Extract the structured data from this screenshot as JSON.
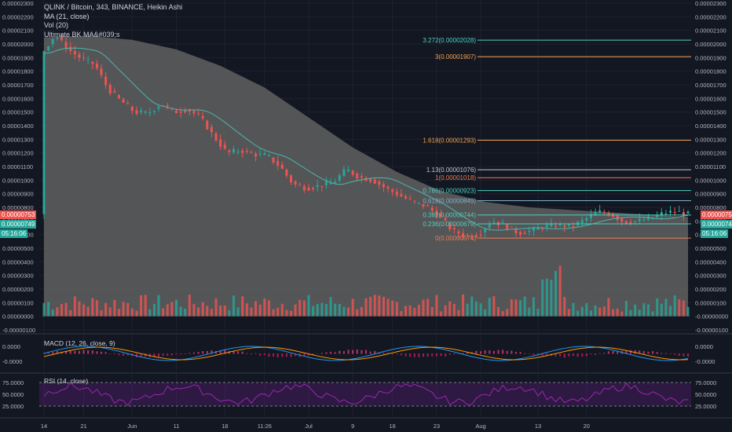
{
  "header": {
    "title": "QLINK / Bitcoin, 343, BINANCE, Heikin Ashi",
    "ma": "MA (21, close)",
    "vol": "Vol (20)",
    "ultimate": "Ultimate BK MA&#039;s"
  },
  "price_badges": {
    "last": "0.00000753",
    "ma": "0.00000749",
    "countdown": "05:16:06"
  },
  "x_tick_labels": [
    "14",
    "21",
    "Jun",
    "11",
    "18",
    "11:26",
    "Jul",
    "9",
    "16",
    "23",
    "Aug",
    "13",
    "20"
  ],
  "main_y_labels": [
    "0.00002300",
    "0.00002200",
    "0.00002100",
    "0.00002000",
    "0.00001900",
    "0.00001800",
    "0.00001700",
    "0.00001600",
    "0.00001500",
    "0.00001400",
    "0.00001300",
    "0.00001200",
    "0.00001100",
    "0.00001000",
    "0.00000900",
    "0.00000800",
    "0.00000700",
    "0.00000600",
    "0.00000500",
    "0.00000400",
    "0.00000300",
    "0.00000200",
    "0.00000100",
    "0.00000000",
    "-0.00000100"
  ],
  "right_y_labels": [
    "0.00002300",
    "0.00002200",
    "0.00002100",
    "0.00002000",
    "0.00001900",
    "0.00001800",
    "0.00001700",
    "0.00001600",
    "0.00001500",
    "0.00001400",
    "0.00001300",
    "0.00001200",
    "0.00001100",
    "0.00001000",
    "0.00000900",
    "0.00000800",
    "0.00000700",
    "0.00000600",
    "0.00000500",
    "0.00000400",
    "0.00000300",
    "0.00000200",
    "0.00000100",
    "-0.00000000",
    "-0.00000100"
  ],
  "macd": {
    "label": "MACD (12, 26, close, 9)",
    "y_labels": [
      "0.0000",
      "-0.0000"
    ]
  },
  "rsi": {
    "label": "RSI (14, close)",
    "y_labels": [
      "75.0000",
      "50.0000",
      "25.0000"
    ],
    "right_y_labels": [
      "75.0000",
      "50.0000",
      "25.0000"
    ]
  },
  "fib_levels": [
    {
      "ratio": 3.272,
      "label": "3.272(0.00002028)",
      "color": "#4dd0c0"
    },
    {
      "ratio": 3,
      "label": "3(0.00001907)",
      "color": "#f0a050"
    },
    {
      "ratio": 1.618,
      "label": "1.618(0.00001293)",
      "color": "#f0a050"
    },
    {
      "ratio": 1.13,
      "label": "1.13(0.00001076)",
      "color": "#c8c8c8"
    },
    {
      "ratio": 1,
      "label": "1(0.00001018)",
      "color": "#f07a50"
    },
    {
      "ratio": 0.786,
      "label": "0.786(0.00000923)",
      "color": "#4dd0c0"
    },
    {
      "ratio": 0.618,
      "label": "0.618(0.00000849)",
      "color": "#7fb0c8"
    },
    {
      "ratio": 0.382,
      "label": "0.382(0.00000744)",
      "color": "#4dd0c0"
    },
    {
      "ratio": 0.236,
      "label": "0.236(0.00000679)",
      "color": "#4dd0c0"
    },
    {
      "ratio": 0,
      "label": "0(0.00000574)",
      "color": "#f07a50"
    }
  ],
  "colors": {
    "up": "#26a69a",
    "down": "#ef5350",
    "band": "#606060",
    "macd": "#2196f3",
    "signal": "#ff9800",
    "rsi": "#7b1fa2",
    "bg": "#131722"
  },
  "chart_data": {
    "type": "candlestick",
    "symbol": "QLINK / Bitcoin",
    "y_range": [
      -1e-06,
      2.3e-05
    ],
    "close_series_points": [
      [
        0,
        1.93e-05
      ],
      [
        3,
        2.07e-05
      ],
      [
        6,
        1.96e-05
      ],
      [
        9,
        1.89e-05
      ],
      [
        12,
        1.85e-05
      ],
      [
        15,
        1.67e-05
      ],
      [
        18,
        1.58e-05
      ],
      [
        21,
        1.5e-05
      ],
      [
        24,
        1.49e-05
      ],
      [
        27,
        1.56e-05
      ],
      [
        30,
        1.5e-05
      ],
      [
        33,
        1.52e-05
      ],
      [
        36,
        1.46e-05
      ],
      [
        39,
        1.32e-05
      ],
      [
        42,
        1.2e-05
      ],
      [
        45,
        1.22e-05
      ],
      [
        48,
        1.19e-05
      ],
      [
        51,
        1.18e-05
      ],
      [
        54,
        1.1e-05
      ],
      [
        57,
        9.7e-06
      ],
      [
        60,
        9.4e-06
      ],
      [
        63,
        9.6e-06
      ],
      [
        66,
        9.8e-06
      ],
      [
        69,
        1.08e-05
      ],
      [
        72,
        1.02e-05
      ],
      [
        75,
        1e-05
      ],
      [
        78,
        9.4e-06
      ],
      [
        81,
        8.9e-06
      ],
      [
        84,
        8.4e-06
      ],
      [
        87,
        8.1e-06
      ],
      [
        90,
        7.4e-06
      ],
      [
        93,
        6.3e-06
      ],
      [
        96,
        5.9e-06
      ],
      [
        99,
        6e-06
      ],
      [
        102,
        7e-06
      ],
      [
        105,
        6.7e-06
      ],
      [
        108,
        6.1e-06
      ],
      [
        111,
        6.3e-06
      ],
      [
        114,
        6.6e-06
      ],
      [
        117,
        6.7e-06
      ],
      [
        120,
        6.6e-06
      ],
      [
        123,
        7.1e-06
      ],
      [
        126,
        7.7e-06
      ],
      [
        129,
        7.5e-06
      ],
      [
        132,
        6.9e-06
      ],
      [
        135,
        7e-06
      ],
      [
        138,
        7.2e-06
      ],
      [
        141,
        7.6e-06
      ],
      [
        144,
        7.7e-06
      ],
      [
        146,
        7.5e-06
      ]
    ],
    "band_series_points": [
      [
        0,
        2.05e-05
      ],
      [
        10,
        2.06e-05
      ],
      [
        20,
        2.03e-05
      ],
      [
        30,
        1.96e-05
      ],
      [
        40,
        1.84e-05
      ],
      [
        50,
        1.68e-05
      ],
      [
        60,
        1.46e-05
      ],
      [
        70,
        1.24e-05
      ],
      [
        80,
        1.06e-05
      ],
      [
        90,
        9.2e-06
      ],
      [
        100,
        8.4e-06
      ],
      [
        110,
        8e-06
      ],
      [
        120,
        7.8e-06
      ],
      [
        130,
        7.6e-06
      ],
      [
        140,
        7.4e-06
      ],
      [
        146,
        7.3e-06
      ]
    ],
    "x_tick_labels": [
      "14",
      "21",
      "Jun",
      "11",
      "18",
      "11:26",
      "Jul",
      "9",
      "16",
      "23",
      "Aug",
      "13",
      "20"
    ],
    "x_tick_positions": [
      0,
      9,
      20,
      30,
      41,
      50,
      60,
      70,
      79,
      89,
      99,
      112,
      123
    ],
    "fib_retracement": "see fib_levels"
  }
}
